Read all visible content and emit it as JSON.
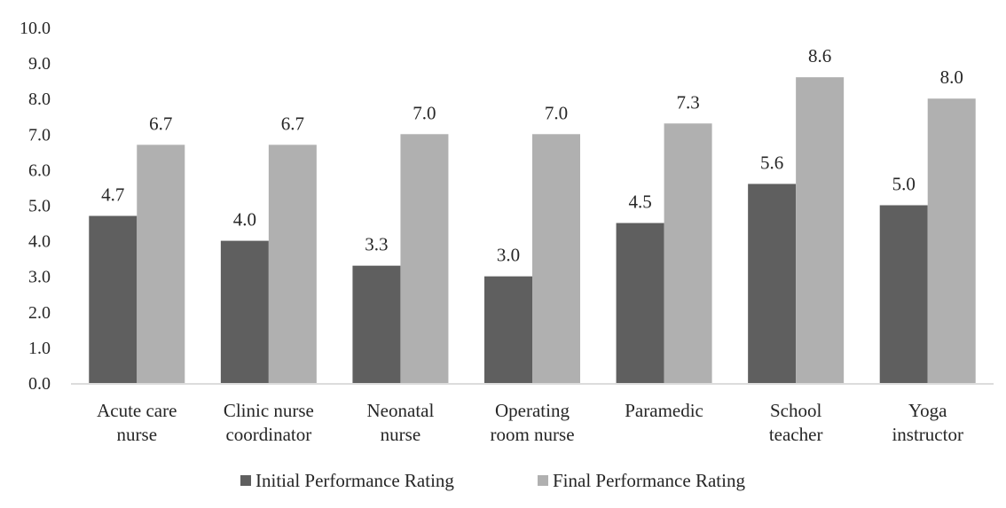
{
  "chart_data": {
    "type": "bar",
    "title": "",
    "xlabel": "",
    "ylabel": "",
    "ylim": [
      0,
      10
    ],
    "ytick_step": 1,
    "ytick_decimals": 1,
    "grid": false,
    "legend_position": "bottom",
    "categories": [
      [
        "Acute care",
        "nurse"
      ],
      [
        "Clinic nurse",
        "coordinator"
      ],
      [
        "Neonatal",
        "nurse"
      ],
      [
        "Operating",
        "room nurse"
      ],
      [
        "Paramedic"
      ],
      [
        "School",
        "teacher"
      ],
      [
        "Yoga",
        "instructor"
      ]
    ],
    "series": [
      {
        "name": "Initial Performance Rating",
        "color": "#5f5f5f",
        "values": [
          4.7,
          4.0,
          3.3,
          3.0,
          4.5,
          5.6,
          5.0
        ]
      },
      {
        "name": "Final Performance Rating",
        "color": "#b0b0b0",
        "values": [
          6.7,
          6.7,
          7.0,
          7.0,
          7.3,
          8.6,
          8.0
        ]
      }
    ]
  }
}
